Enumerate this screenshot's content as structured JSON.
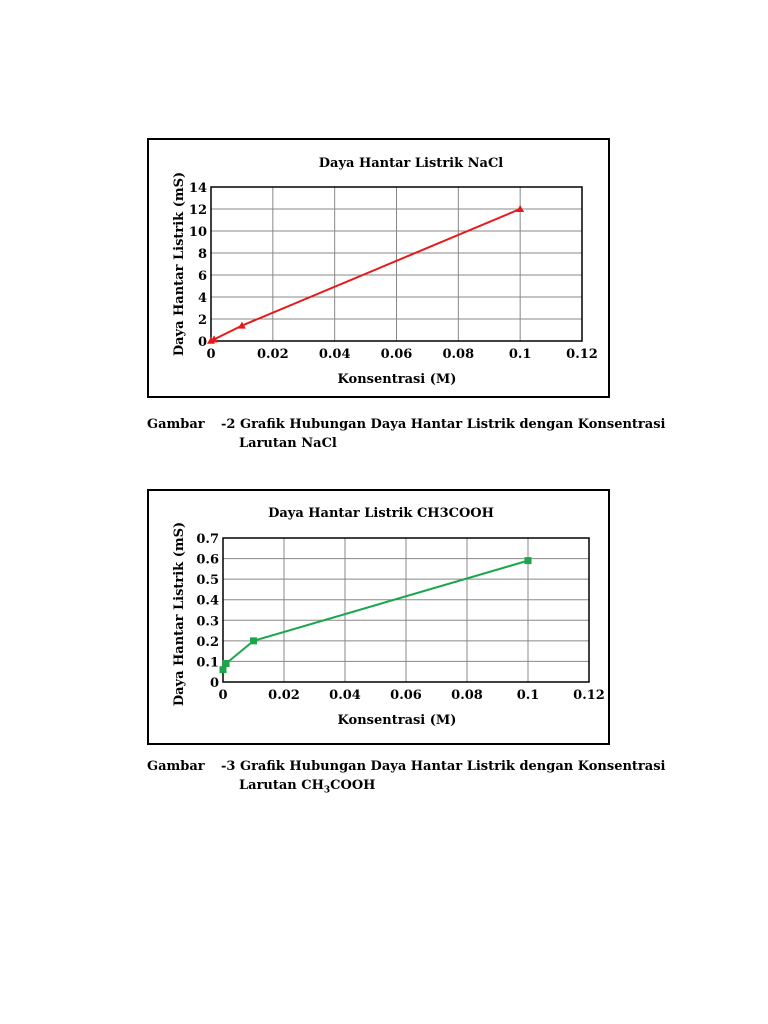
{
  "charts": [
    {
      "title": "Daya Hantar Listrik NaCl",
      "xlabel": "Konsentrasi (M)",
      "ylabel": "Daya Hantar Listrik (mS)",
      "color": "#e8191b"
    },
    {
      "title": "Daya Hantar Listrik CH3COOH",
      "xlabel": "Konsentrasi (M)",
      "ylabel": "Daya Hantar Listrik (mS)",
      "color": "#1aa64b"
    }
  ],
  "chart_data": [
    {
      "type": "line",
      "title": "Daya Hantar Listrik NaCl",
      "xlabel": "Konsentrasi (M)",
      "ylabel": "Daya Hantar Listrik (mS)",
      "xlim": [
        0,
        0.12
      ],
      "ylim": [
        0,
        14
      ],
      "xticks": [
        "0",
        "0.02",
        "0.04",
        "0.06",
        "0.08",
        "0.1",
        "0.12"
      ],
      "yticks": [
        "0",
        "2",
        "4",
        "6",
        "8",
        "10",
        "12",
        "14"
      ],
      "grid": true,
      "marker": "triangle",
      "color": "#e8191b",
      "series": [
        {
          "x": [
            0,
            0.001,
            0.01,
            0.1
          ],
          "y": [
            0.02,
            0.15,
            1.4,
            12.0
          ]
        }
      ]
    },
    {
      "type": "line",
      "title": "Daya Hantar Listrik CH3COOH",
      "xlabel": "Konsentrasi (M)",
      "ylabel": "Daya Hantar Listrik (mS)",
      "xlim": [
        0,
        0.12
      ],
      "ylim": [
        0,
        0.7
      ],
      "xticks": [
        "0",
        "0.02",
        "0.04",
        "0.06",
        "0.08",
        "0.1",
        "0.12"
      ],
      "yticks": [
        "0",
        "0.1",
        "0.2",
        "0.3",
        "0.4",
        "0.5",
        "0.6",
        "0.7"
      ],
      "grid": true,
      "marker": "square",
      "color": "#1aa64b",
      "series": [
        {
          "x": [
            0,
            0.001,
            0.01,
            0.1
          ],
          "y": [
            0.06,
            0.09,
            0.2,
            0.59
          ]
        }
      ]
    }
  ],
  "captions": [
    {
      "label": "Gambar",
      "number": "-2",
      "line1": "Grafik Hubungan Daya Hantar Listrik dengan Konsentrasi",
      "line2": "Larutan NaCl"
    },
    {
      "label": "Gambar",
      "number": "-3",
      "line1": "Grafik Hubungan Daya Hantar Listrik dengan Konsentrasi",
      "line2_pre": "Larutan CH",
      "line2_sub1": "3",
      "line2_mid": "COOH"
    }
  ]
}
